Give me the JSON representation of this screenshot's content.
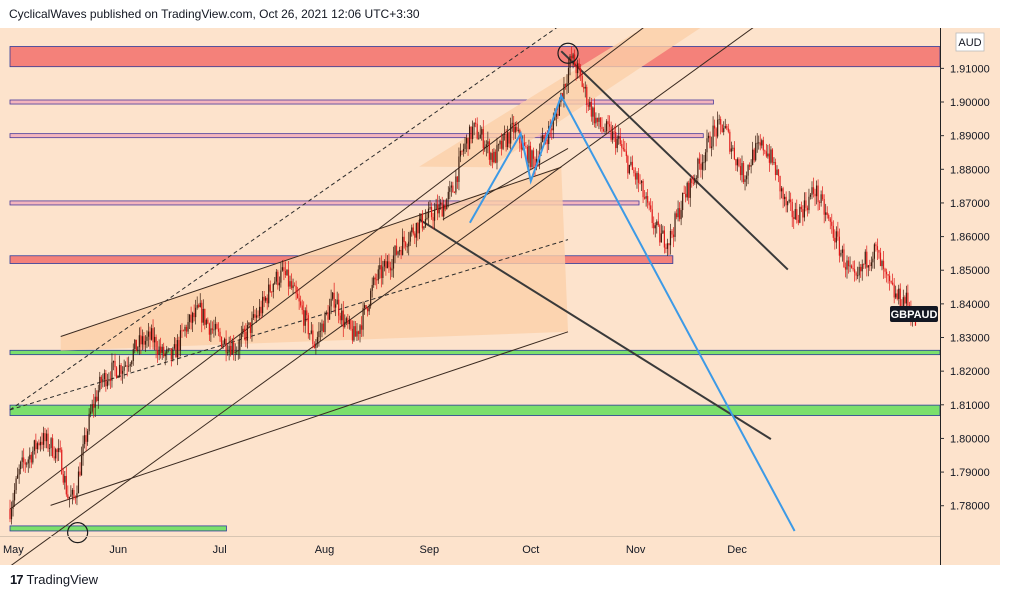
{
  "header": {
    "publisher_line": "CyclicalWaves published on TradingView.com, Oct 26, 2021 12:06 UTC+3:30"
  },
  "footer": {
    "brand": "TradingView",
    "logo_glyph": "17"
  },
  "colors": {
    "background": "#fde3cc",
    "channel_fill": "#fbd0a9",
    "red_zone": "#f4817a",
    "green_zone": "#7bdf6c",
    "purple_zone": "#f3b5bd",
    "blue_line": "#3d9ae6",
    "candle_up": "#3b1d0f",
    "candle_down": "#e01818"
  },
  "chart_data": {
    "type": "candlestick",
    "symbol": "GBPAUD",
    "currency": "AUD",
    "x_ticks": [
      "May",
      "Jun",
      "Jul",
      "Aug",
      "Sep",
      "Oct",
      "Nov",
      "Dec"
    ],
    "y_ticks": [
      "1.78000",
      "1.79000",
      "1.80000",
      "1.81000",
      "1.82000",
      "1.83000",
      "1.84000",
      "1.85000",
      "1.86000",
      "1.87000",
      "1.88000",
      "1.89000",
      "1.90000",
      "1.91000"
    ],
    "ylim": [
      1.771,
      1.922
    ],
    "xlim_days": [
      0,
      275
    ],
    "last_price_label": "GBPAUD",
    "price_path": [
      [
        0,
        1.779
      ],
      [
        3,
        1.791
      ],
      [
        6,
        1.795
      ],
      [
        9,
        1.8
      ],
      [
        12,
        1.798
      ],
      [
        15,
        1.794
      ],
      [
        17,
        1.783
      ],
      [
        19,
        1.782
      ],
      [
        21,
        1.793
      ],
      [
        24,
        1.808
      ],
      [
        27,
        1.817
      ],
      [
        30,
        1.82
      ],
      [
        34,
        1.822
      ],
      [
        38,
        1.828
      ],
      [
        42,
        1.83
      ],
      [
        45,
        1.825
      ],
      [
        48,
        1.824
      ],
      [
        52,
        1.833
      ],
      [
        56,
        1.838
      ],
      [
        60,
        1.832
      ],
      [
        63,
        1.829
      ],
      [
        67,
        1.827
      ],
      [
        71,
        1.833
      ],
      [
        75,
        1.84
      ],
      [
        78,
        1.847
      ],
      [
        81,
        1.849
      ],
      [
        84,
        1.843
      ],
      [
        87,
        1.836
      ],
      [
        90,
        1.828
      ],
      [
        93,
        1.835
      ],
      [
        96,
        1.842
      ],
      [
        99,
        1.834
      ],
      [
        102,
        1.83
      ],
      [
        105,
        1.838
      ],
      [
        108,
        1.847
      ],
      [
        112,
        1.852
      ],
      [
        116,
        1.858
      ],
      [
        120,
        1.863
      ],
      [
        124,
        1.866
      ],
      [
        128,
        1.869
      ],
      [
        131,
        1.874
      ],
      [
        134,
        1.886
      ],
      [
        137,
        1.892
      ],
      [
        140,
        1.889
      ],
      [
        143,
        1.883
      ],
      [
        146,
        1.888
      ],
      [
        149,
        1.892
      ],
      [
        152,
        1.886
      ],
      [
        155,
        1.882
      ],
      [
        158,
        1.889
      ],
      [
        161,
        1.894
      ],
      [
        163,
        1.902
      ],
      [
        166,
        1.913
      ],
      [
        168,
        1.909
      ],
      [
        171,
        1.9
      ],
      [
        174,
        1.893
      ],
      [
        177,
        1.891
      ],
      [
        180,
        1.888
      ],
      [
        183,
        1.881
      ],
      [
        186,
        1.876
      ],
      [
        189,
        1.867
      ],
      [
        192,
        1.86
      ],
      [
        195,
        1.859
      ],
      [
        197,
        1.865
      ],
      [
        199,
        1.871
      ],
      [
        202,
        1.877
      ],
      [
        205,
        1.884
      ],
      [
        208,
        1.891
      ],
      [
        211,
        1.893
      ],
      [
        214,
        1.885
      ],
      [
        217,
        1.878
      ],
      [
        220,
        1.885
      ],
      [
        223,
        1.887
      ],
      [
        226,
        1.881
      ],
      [
        229,
        1.87
      ],
      [
        232,
        1.866
      ],
      [
        235,
        1.869
      ],
      [
        238,
        1.874
      ],
      [
        241,
        1.867
      ],
      [
        244,
        1.86
      ],
      [
        247,
        1.852
      ],
      [
        250,
        1.846
      ],
      [
        253,
        1.853
      ],
      [
        256,
        1.856
      ],
      [
        259,
        1.847
      ],
      [
        262,
        1.842
      ],
      [
        265,
        1.841
      ],
      [
        268,
        1.834
      ]
    ],
    "horizontal_zones": [
      {
        "kind": "red",
        "y_top": 1.9165,
        "y_bottom": 1.9105,
        "x_end_days": 275
      },
      {
        "kind": "purple",
        "y_top": 1.9006,
        "y_bottom": 1.8994,
        "x_end_days": 208
      },
      {
        "kind": "purple",
        "y_top": 1.8906,
        "y_bottom": 1.8894,
        "x_end_days": 205
      },
      {
        "kind": "purple",
        "y_top": 1.8706,
        "y_bottom": 1.8694,
        "x_end_days": 186
      },
      {
        "kind": "red",
        "y_top": 1.8543,
        "y_bottom": 1.852,
        "x_end_days": 196
      },
      {
        "kind": "green",
        "y_top": 1.8262,
        "y_bottom": 1.8249,
        "x_end_days": 275
      },
      {
        "kind": "green",
        "y_top": 1.8099,
        "y_bottom": 1.8068,
        "x_end_days": 275
      },
      {
        "kind": "green",
        "y_top": 1.774,
        "y_bottom": 1.7725,
        "x_end_days": 64
      }
    ],
    "trend_lines": [
      {
        "style": "solid",
        "from": [
          0,
          1.779
        ],
        "to": [
          200,
          1.9318
        ]
      },
      {
        "style": "solid",
        "from": [
          0,
          1.762
        ],
        "to": [
          220,
          1.9223
        ]
      },
      {
        "style": "dashed",
        "from": [
          0,
          1.8085
        ],
        "to": [
          176,
          1.9322
        ]
      },
      {
        "style": "dashed",
        "from": [
          0,
          1.8085
        ],
        "to": [
          165,
          1.8591
        ]
      },
      {
        "style": "solid",
        "from": [
          15,
          1.8303
        ],
        "to": [
          163,
          1.8806
        ]
      },
      {
        "style": "solid",
        "from": [
          12,
          1.7801
        ],
        "to": [
          165,
          1.8317
        ]
      },
      {
        "style": "solid",
        "from": [
          128,
          1.8651
        ],
        "to": [
          165,
          1.8862
        ]
      },
      {
        "style": "dark",
        "from": [
          163,
          1.9151
        ],
        "to": [
          230,
          1.8502
        ]
      },
      {
        "style": "dark",
        "from": [
          121,
          1.8651
        ],
        "to": [
          225,
          1.7998
        ]
      }
    ],
    "channel_polygon": [
      [
        15,
        1.8303
      ],
      [
        163,
        1.8809
      ],
      [
        165,
        1.8317
      ],
      [
        15,
        1.8261
      ]
    ],
    "channel_upper_fill": [
      [
        121,
        1.8808
      ],
      [
        188,
        1.9226
      ],
      [
        205,
        1.9226
      ],
      [
        142,
        1.8806
      ]
    ],
    "pattern_blue": [
      [
        136,
        1.8641
      ],
      [
        151,
        1.8906
      ],
      [
        154,
        1.8765
      ],
      [
        163,
        1.9018
      ],
      [
        232,
        1.7725
      ]
    ],
    "circle_markers": [
      [
        165,
        1.9145
      ],
      [
        20,
        1.772
      ]
    ]
  }
}
